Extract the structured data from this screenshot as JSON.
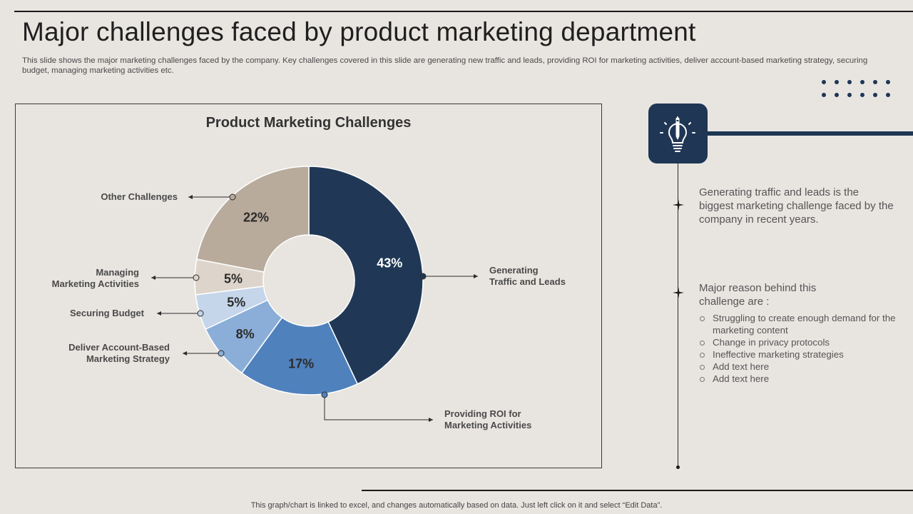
{
  "slide": {
    "title": "Major challenges faced by product marketing department",
    "description": "This slide shows the major marketing challenges faced by the company. Key challenges covered in this slide are generating new traffic and leads, providing ROI for marketing activities, deliver account-based marketing strategy, securing budget, managing marketing activities etc.",
    "footer": "This graph/chart is linked to excel,  and changes automatically based on data. Just left click on it and select “Edit Data”."
  },
  "chart_data": {
    "type": "pie",
    "title": "Product Marketing Challenges",
    "donut": true,
    "unit": "%",
    "slices": [
      {
        "label": "Generating Traffic and Leads",
        "label_lines": [
          "Generating",
          "Traffic and Leads"
        ],
        "value": 43,
        "display": "43%",
        "color": "#203856"
      },
      {
        "label": "Providing ROI for Marketing Activities",
        "label_lines": [
          "Providing ROI for",
          "Marketing Activities"
        ],
        "value": 17,
        "display": "17%",
        "color": "#4f81bd"
      },
      {
        "label": "Deliver Account-Based Marketing Strategy",
        "label_lines": [
          "Deliver Account-Based",
          "Marketing Strategy"
        ],
        "value": 8,
        "display": "8%",
        "color": "#8aaed8"
      },
      {
        "label": "Securing Budget",
        "label_lines": [
          "Securing Budget"
        ],
        "value": 5,
        "display": "5%",
        "color": "#c5d5ea"
      },
      {
        "label": "Managing Marketing Activities",
        "label_lines": [
          "Managing",
          "Marketing Activities"
        ],
        "value": 5,
        "display": "5%",
        "color": "#ddd5cb"
      },
      {
        "label": "Other Challenges",
        "label_lines": [
          "Other Challenges"
        ],
        "value": 22,
        "display": "22%",
        "color": "#b8ab9c"
      }
    ]
  },
  "insight": {
    "icon": "lightbulb-pencil-icon",
    "accent_color": "#1f3654",
    "statement": "Generating traffic and leads is the biggest marketing challenge faced by the company in recent years.",
    "reasons_heading": "Major reason behind this challenge are :",
    "reasons": [
      "Struggling to create enough demand for the marketing content",
      "Change in privacy protocols",
      "Ineffective marketing strategies",
      "Add text here",
      "Add text here"
    ]
  }
}
